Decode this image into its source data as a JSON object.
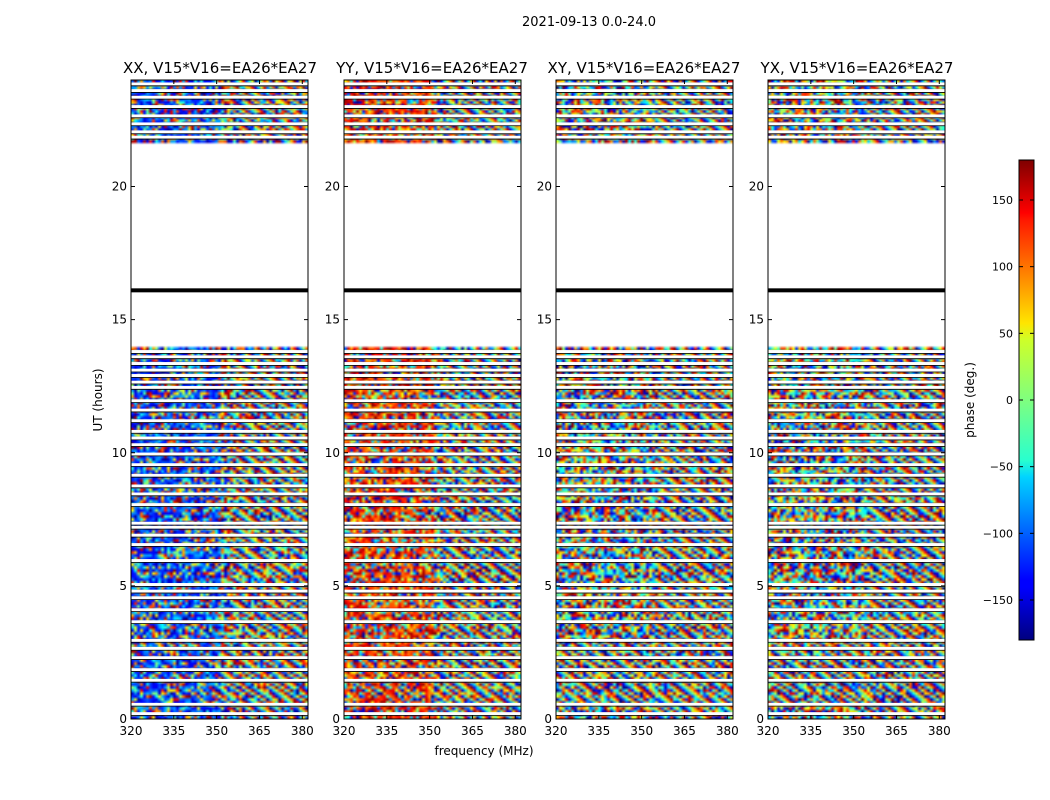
{
  "figure": {
    "suptitle": "2021-09-13 0.0-24.0"
  },
  "chart_data": {
    "type": "heatmap",
    "title": "2021-09-13 0.0-24.0",
    "xlabel": "frequency (MHz)",
    "ylabel": "UT (hours)",
    "xlim": [
      320,
      382
    ],
    "ylim": [
      0,
      24
    ],
    "xticks": [
      320,
      335,
      350,
      365,
      380
    ],
    "yticks": [
      0,
      5,
      10,
      15,
      20
    ],
    "panels": [
      {
        "id": "xx",
        "title": "XX, V15*V16=EA26*EA27",
        "pol": "XX",
        "show_ylabel": true,
        "show_xlabel": false
      },
      {
        "id": "yy",
        "title": "YY, V15*V16=EA26*EA27",
        "pol": "YY",
        "show_ylabel": false,
        "show_xlabel": true
      },
      {
        "id": "xy",
        "title": "XY, V15*V16=EA26*EA27",
        "pol": "XY",
        "show_ylabel": false,
        "show_xlabel": false
      },
      {
        "id": "yx",
        "title": "YX, V15*V16=EA26*EA27",
        "pol": "YX",
        "show_ylabel": false,
        "show_xlabel": false
      }
    ],
    "flagged_ranges_hours": [
      [
        14.0,
        21.6
      ]
    ],
    "gap_lines_hours": [
      0.2,
      0.55,
      1.45,
      1.85,
      2.3,
      2.65,
      2.95,
      3.65,
      4.1,
      4.55,
      4.8,
      5.05,
      5.95,
      6.55,
      6.9,
      7.2,
      7.35,
      8.05,
      8.45,
      8.75,
      9.15,
      9.55,
      9.95,
      10.3,
      10.55,
      10.8,
      11.2,
      11.6,
      11.95,
      12.45,
      12.65,
      12.9,
      13.1,
      13.35,
      13.6,
      13.8,
      16.1,
      21.85,
      22.05,
      22.35,
      22.65,
      23.0,
      23.35,
      23.6,
      23.85
    ],
    "colorbar": {
      "label": "phase (deg.)",
      "range": [
        -180,
        180
      ],
      "ticks": [
        -150,
        -100,
        -50,
        0,
        50,
        100,
        150
      ],
      "tick_labels": [
        "−150",
        "−100",
        "−50",
        "0",
        "50",
        "100",
        "150"
      ],
      "colormap": "jet"
    }
  }
}
